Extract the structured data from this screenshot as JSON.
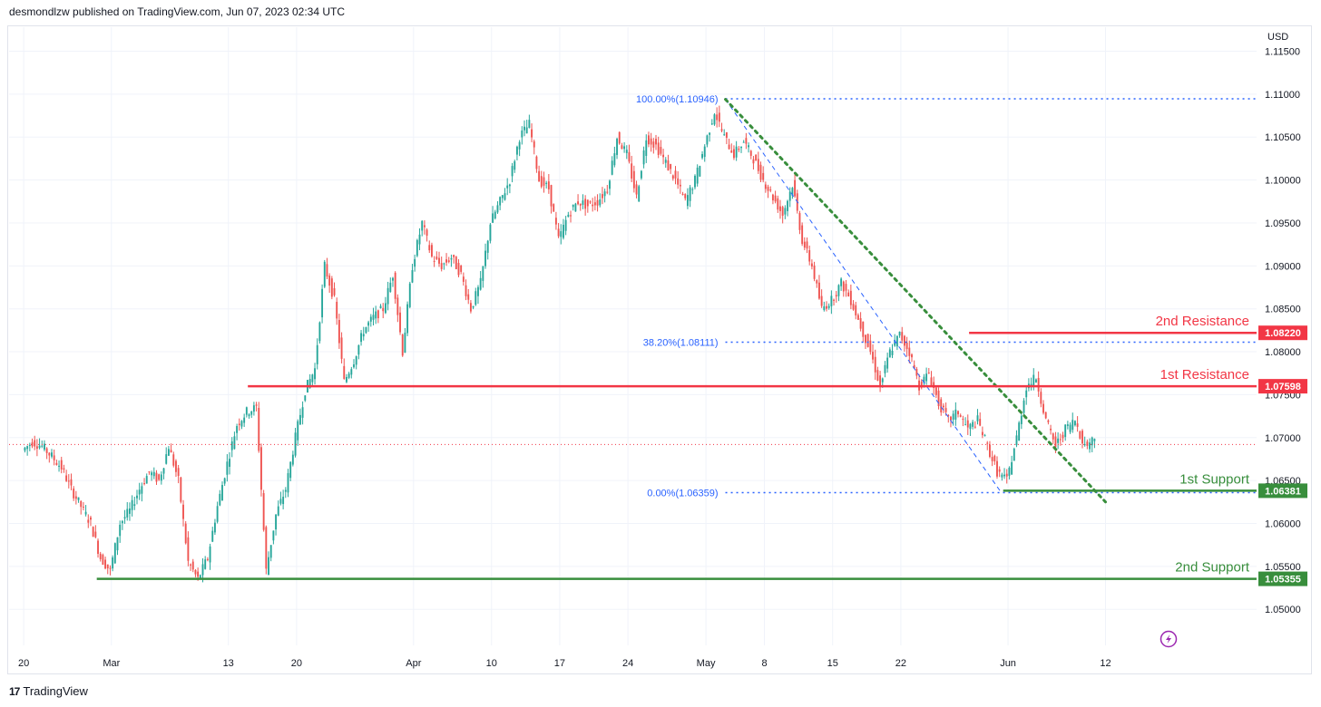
{
  "header": {
    "publisher": "desmondlzw published on TradingView.com, Jun 07, 2023 02:34 UTC"
  },
  "footer": {
    "brand": "TradingView",
    "logo": "17"
  },
  "chart_data": {
    "type": "candlestick",
    "currency": "USD",
    "ylim": [
      1.0458,
      1.1178
    ],
    "yticks": [
      1.115,
      1.11,
      1.105,
      1.1,
      1.095,
      1.09,
      1.085,
      1.08,
      1.075,
      1.07,
      1.065,
      1.06,
      1.055,
      1.05
    ],
    "ytick_labels": [
      "1.11500",
      "1.11000",
      "1.10500",
      "1.10000",
      "1.09500",
      "1.09000",
      "1.08500",
      "1.08000",
      "1.07500",
      "1.07000",
      "1.06500",
      "1.06000",
      "1.05500",
      "1.05000"
    ],
    "x_range_days": [
      -1.5,
      126.5
    ],
    "xticks": [
      {
        "label": "20",
        "day": 0
      },
      {
        "label": "Mar",
        "day": 9
      },
      {
        "label": "13",
        "day": 21
      },
      {
        "label": "20",
        "day": 28
      },
      {
        "label": "Apr",
        "day": 40
      },
      {
        "label": "10",
        "day": 48
      },
      {
        "label": "17",
        "day": 55
      },
      {
        "label": "24",
        "day": 62
      },
      {
        "label": "May",
        "day": 70
      },
      {
        "label": "8",
        "day": 76
      },
      {
        "label": "15",
        "day": 83
      },
      {
        "label": "22",
        "day": 90
      },
      {
        "label": "Jun",
        "day": 101
      },
      {
        "label": "12",
        "day": 111
      }
    ],
    "price_path": [
      [
        0,
        1.0685
      ],
      [
        1,
        1.0695
      ],
      [
        2,
        1.069
      ],
      [
        3,
        1.0678
      ],
      [
        4,
        1.0665
      ],
      [
        5,
        1.064
      ],
      [
        6,
        1.062
      ],
      [
        7,
        1.06
      ],
      [
        8,
        1.056
      ],
      [
        9,
        1.0545
      ],
      [
        10,
        1.06
      ],
      [
        11,
        1.0615
      ],
      [
        12,
        1.064
      ],
      [
        13,
        1.066
      ],
      [
        14,
        1.065
      ],
      [
        15,
        1.069
      ],
      [
        16,
        1.065
      ],
      [
        17,
        1.0555
      ],
      [
        18,
        1.0535
      ],
      [
        19,
        1.056
      ],
      [
        20,
        1.062
      ],
      [
        21,
        1.067
      ],
      [
        22,
        1.0715
      ],
      [
        23,
        1.073
      ],
      [
        24,
        1.0735
      ],
      [
        25,
        1.0545
      ],
      [
        26,
        1.061
      ],
      [
        27,
        1.064
      ],
      [
        28,
        1.07
      ],
      [
        29,
        1.0755
      ],
      [
        30,
        1.078
      ],
      [
        31,
        1.09
      ],
      [
        32,
        1.086
      ],
      [
        33,
        1.0765
      ],
      [
        34,
        1.079
      ],
      [
        35,
        1.0825
      ],
      [
        36,
        1.084
      ],
      [
        37,
        1.085
      ],
      [
        38,
        1.089
      ],
      [
        39,
        1.08
      ],
      [
        40,
        1.09
      ],
      [
        41,
        1.095
      ],
      [
        42,
        1.091
      ],
      [
        43,
        1.09
      ],
      [
        44,
        1.091
      ],
      [
        45,
        1.089
      ],
      [
        46,
        1.085
      ],
      [
        47,
        1.088
      ],
      [
        48,
        1.095
      ],
      [
        49,
        1.0975
      ],
      [
        50,
        1.1
      ],
      [
        51,
        1.105
      ],
      [
        52,
        1.1065
      ],
      [
        53,
        1.1
      ],
      [
        54,
        1.099
      ],
      [
        55,
        1.093
      ],
      [
        56,
        1.096
      ],
      [
        57,
        1.0975
      ],
      [
        58,
        1.097
      ],
      [
        59,
        1.0975
      ],
      [
        60,
        1.099
      ],
      [
        61,
        1.105
      ],
      [
        62,
        1.103
      ],
      [
        63,
        1.098
      ],
      [
        64,
        1.105
      ],
      [
        65,
        1.104
      ],
      [
        66,
        1.102
      ],
      [
        67,
        1.1
      ],
      [
        68,
        1.0975
      ],
      [
        69,
        1.1
      ],
      [
        70,
        1.104
      ],
      [
        71,
        1.108
      ],
      [
        72,
        1.105
      ],
      [
        73,
        1.103
      ],
      [
        74,
        1.1045
      ],
      [
        75,
        1.1025
      ],
      [
        76,
        1.1
      ],
      [
        77,
        1.098
      ],
      [
        78,
        1.096
      ],
      [
        79,
        1.0995
      ],
      [
        80,
        1.093
      ],
      [
        81,
        1.09
      ],
      [
        82,
        1.085
      ],
      [
        83,
        1.086
      ],
      [
        84,
        1.088
      ],
      [
        85,
        1.086
      ],
      [
        86,
        1.083
      ],
      [
        87,
        1.08
      ],
      [
        88,
        1.076
      ],
      [
        89,
        1.08
      ],
      [
        90,
        1.082
      ],
      [
        91,
        1.08
      ],
      [
        92,
        1.076
      ],
      [
        93,
        1.0775
      ],
      [
        94,
        1.074
      ],
      [
        95,
        1.072
      ],
      [
        96,
        1.073
      ],
      [
        97,
        1.071
      ],
      [
        98,
        1.072
      ],
      [
        99,
        1.069
      ],
      [
        100,
        1.066
      ],
      [
        101,
        1.065
      ],
      [
        102,
        1.07
      ],
      [
        103,
        1.076
      ],
      [
        104,
        1.077
      ],
      [
        105,
        1.072
      ],
      [
        106,
        1.069
      ],
      [
        107,
        1.071
      ],
      [
        108,
        1.072
      ],
      [
        109,
        1.069
      ],
      [
        110,
        1.07
      ]
    ],
    "last_price": 1.0692,
    "levels": [
      {
        "name": "2nd Resistance",
        "value": "1.08220",
        "price": 1.0822,
        "color": "#f23645",
        "start_day": 97
      },
      {
        "name": "1st Resistance",
        "value": "1.07598",
        "price": 1.07598,
        "color": "#f23645",
        "start_day": 23
      },
      {
        "name": "1st Support",
        "value": "1.06381",
        "price": 1.06381,
        "color": "#388e3c",
        "start_day": 100.5
      },
      {
        "name": "2nd Support",
        "value": "1.05355",
        "price": 1.05355,
        "color": "#388e3c",
        "start_day": 7.5
      }
    ],
    "fibonacci": [
      {
        "label": "100.00%(1.10946)",
        "price": 1.10946
      },
      {
        "label": "38.20%(1.08111)",
        "price": 1.08111
      },
      {
        "label": "0.00%(1.06359)",
        "price": 1.06359
      }
    ],
    "fib_anchor_day": 72,
    "trendline": {
      "from": [
        72,
        1.1094
      ],
      "to": [
        111,
        1.0625
      ],
      "color": "#388e3c",
      "style": "dotted"
    },
    "fib_diagonal": {
      "from": [
        72,
        1.1094
      ],
      "to": [
        100.3,
        1.0636
      ],
      "color": "#2962ff",
      "style": "dashed"
    },
    "colors": {
      "up": "#26a69a",
      "down": "#ef5350",
      "grid": "#f0f3fa",
      "axis_text": "#131722",
      "fib": "#2962ff",
      "last_price_line": "#f23645",
      "accent": "#9c27b0"
    },
    "icons": {
      "lightning": "lightning-icon"
    }
  }
}
